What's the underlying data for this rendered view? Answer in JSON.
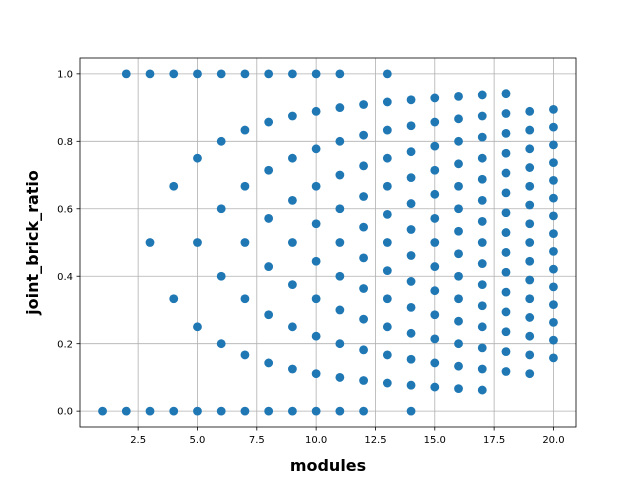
{
  "chart_data": {
    "type": "scatter",
    "xlabel": "modules",
    "ylabel": "joint_brick_ratio",
    "xlim": [
      0.05,
      20.95
    ],
    "ylim": [
      -0.047,
      1.047
    ],
    "x_ticks": [
      2.5,
      5.0,
      7.5,
      10.0,
      12.5,
      15.0,
      17.5,
      20.0
    ],
    "x_tick_labels": [
      "2.5",
      "5.0",
      "7.5",
      "10.0",
      "12.5",
      "15.0",
      "17.5",
      "20.0"
    ],
    "y_ticks": [
      0.0,
      0.2,
      0.4,
      0.6,
      0.8,
      1.0
    ],
    "y_tick_labels": [
      "0.0",
      "0.2",
      "0.4",
      "0.6",
      "0.8",
      "1.0"
    ],
    "grid": true,
    "marker_color": "#1f77b4",
    "columns": [
      {
        "x": 1,
        "y": [
          0.0
        ]
      },
      {
        "x": 2,
        "y": [
          0.0,
          1.0
        ]
      },
      {
        "x": 3,
        "y": [
          0.0,
          0.5,
          1.0
        ]
      },
      {
        "x": 4,
        "y": [
          0.0,
          0.3333,
          0.6667,
          1.0
        ]
      },
      {
        "x": 5,
        "y": [
          0.0,
          0.25,
          0.5,
          0.75,
          1.0
        ]
      },
      {
        "x": 6,
        "y": [
          0.0,
          0.2,
          0.4,
          0.6,
          0.8,
          1.0
        ]
      },
      {
        "x": 7,
        "y": [
          0.0,
          0.1667,
          0.3333,
          0.5,
          0.6667,
          0.8333,
          1.0
        ]
      },
      {
        "x": 8,
        "y": [
          0.0,
          0.1429,
          0.2857,
          0.4286,
          0.5714,
          0.7143,
          0.8571,
          1.0
        ]
      },
      {
        "x": 9,
        "y": [
          0.0,
          0.125,
          0.25,
          0.375,
          0.5,
          0.625,
          0.75,
          0.875,
          1.0
        ]
      },
      {
        "x": 10,
        "y": [
          0.0,
          0.1111,
          0.2222,
          0.3333,
          0.4444,
          0.5556,
          0.6667,
          0.7778,
          0.8889,
          1.0
        ]
      },
      {
        "x": 11,
        "y": [
          0.0,
          0.1,
          0.2,
          0.3,
          0.4,
          0.5,
          0.6,
          0.7,
          0.8,
          0.9,
          1.0
        ]
      },
      {
        "x": 12,
        "y": [
          0.0,
          0.0909,
          0.1818,
          0.2727,
          0.3636,
          0.4545,
          0.5455,
          0.6364,
          0.7273,
          0.8182,
          0.9091
        ]
      },
      {
        "x": 13,
        "y": [
          0.0833,
          0.1667,
          0.25,
          0.3333,
          0.4167,
          0.5,
          0.5833,
          0.6667,
          0.75,
          0.8333,
          0.9167,
          1.0
        ]
      },
      {
        "x": 14,
        "y": [
          0.0,
          0.0769,
          0.1538,
          0.2308,
          0.3077,
          0.3846,
          0.4615,
          0.5385,
          0.6154,
          0.6923,
          0.7692,
          0.8462,
          0.9231
        ]
      },
      {
        "x": 15,
        "y": [
          0.0714,
          0.1429,
          0.2143,
          0.2857,
          0.3571,
          0.4286,
          0.5,
          0.5714,
          0.6429,
          0.7143,
          0.7857,
          0.8571,
          0.9286
        ]
      },
      {
        "x": 16,
        "y": [
          0.0667,
          0.1333,
          0.2,
          0.2667,
          0.3333,
          0.4,
          0.4667,
          0.5333,
          0.6,
          0.6667,
          0.7333,
          0.8,
          0.8667,
          0.9333
        ]
      },
      {
        "x": 17,
        "y": [
          0.0625,
          0.125,
          0.1875,
          0.25,
          0.3125,
          0.375,
          0.4375,
          0.5,
          0.5625,
          0.625,
          0.6875,
          0.75,
          0.8125,
          0.875,
          0.9375
        ]
      },
      {
        "x": 18,
        "y": [
          0.1176,
          0.1765,
          0.2353,
          0.2941,
          0.3529,
          0.4118,
          0.4706,
          0.5294,
          0.5882,
          0.6471,
          0.7059,
          0.7647,
          0.8235,
          0.8824,
          0.9412
        ]
      },
      {
        "x": 19,
        "y": [
          0.1111,
          0.1667,
          0.2222,
          0.2778,
          0.3333,
          0.3889,
          0.4444,
          0.5,
          0.5556,
          0.6111,
          0.6667,
          0.7222,
          0.7778,
          0.8333,
          0.8889
        ]
      },
      {
        "x": 20,
        "y": [
          0.1579,
          0.2105,
          0.2632,
          0.3158,
          0.3684,
          0.4211,
          0.4737,
          0.5263,
          0.5789,
          0.6316,
          0.6842,
          0.7368,
          0.7895,
          0.8421,
          0.8947
        ]
      }
    ]
  }
}
